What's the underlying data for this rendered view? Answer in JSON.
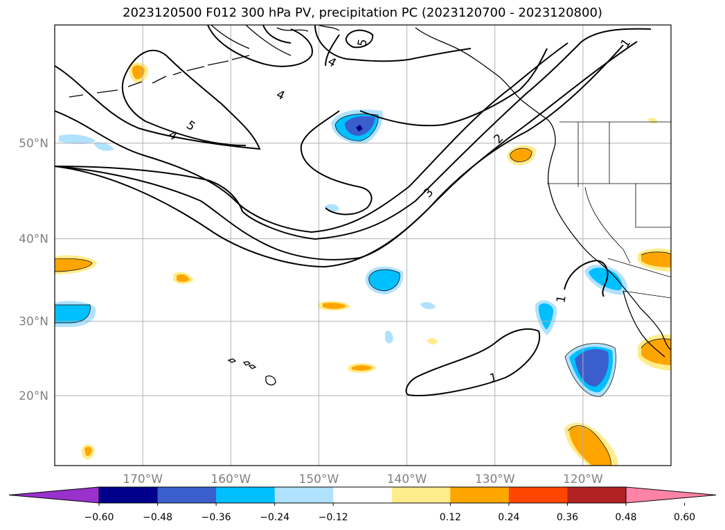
{
  "title": "2023120500 F012 300 hPa PV, precipitation PC (2023120700 - 2023120800)",
  "map": {
    "projection": "Mercator",
    "lon_range": [
      -180,
      -110
    ],
    "lat_range": [
      10,
      60
    ],
    "lon_ticks": [
      {
        "value": -170,
        "label": "170°W"
      },
      {
        "value": -160,
        "label": "160°W"
      },
      {
        "value": -150,
        "label": "150°W"
      },
      {
        "value": -140,
        "label": "140°W"
      },
      {
        "value": -130,
        "label": "130°W"
      },
      {
        "value": -120,
        "label": "120°W"
      }
    ],
    "lat_ticks": [
      {
        "value": 20,
        "label": "20°N"
      },
      {
        "value": 30,
        "label": "30°N"
      },
      {
        "value": 40,
        "label": "40°N"
      },
      {
        "value": 50,
        "label": "50°N"
      }
    ],
    "gridlines": true,
    "pv_contour_labels": [
      "1",
      "1",
      "2",
      "3",
      "4",
      "4",
      "4",
      "5",
      "5"
    ]
  },
  "colorbar": {
    "ticks": [
      "−0.60",
      "−0.48",
      "−0.36",
      "−0.24",
      "−0.12",
      "0.12",
      "0.24",
      "0.36",
      "0.48",
      "0.60"
    ],
    "colors": [
      "#9932cc",
      "#00008b",
      "#3a5fcd",
      "#00bfff",
      "#b0e2ff",
      "#ffffff",
      "#ffec8b",
      "#ffa500",
      "#ff4500",
      "#b22222",
      "#ff83a6"
    ],
    "extend": "both"
  }
}
